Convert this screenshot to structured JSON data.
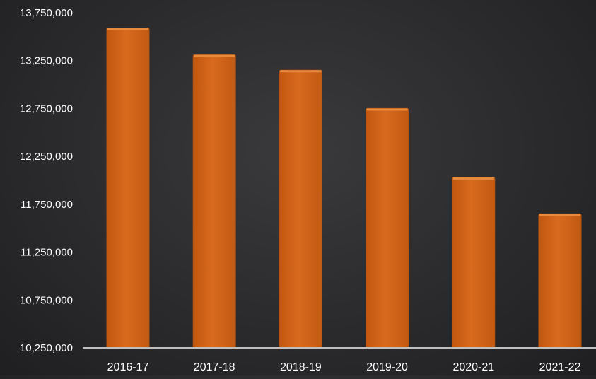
{
  "chart_data": {
    "type": "bar",
    "categories": [
      "2016-17",
      "2017-18",
      "2018-19",
      "2019-20",
      "2020-21",
      "2021-22"
    ],
    "values": [
      13590000,
      13310000,
      13150000,
      12750000,
      12030000,
      11650000
    ],
    "ylim": [
      10250000,
      13750000
    ],
    "yticks": [
      10250000,
      10750000,
      11250000,
      11750000,
      12250000,
      12750000,
      13250000,
      13750000
    ],
    "ytick_labels": [
      "10,250,000",
      "10,750,000",
      "11,250,000",
      "11,750,000",
      "12,250,000",
      "12,750,000",
      "13,250,000",
      "13,750,000"
    ],
    "title": "",
    "xlabel": "",
    "ylabel": "",
    "grid": false,
    "legend": "none",
    "colors": {
      "bar_fill": "#d4661a",
      "bar_top": "#e88a3c",
      "bar_edge": "#b5540f",
      "axis_text": "#ffffff",
      "axis_line": "#bfbfbf"
    }
  }
}
